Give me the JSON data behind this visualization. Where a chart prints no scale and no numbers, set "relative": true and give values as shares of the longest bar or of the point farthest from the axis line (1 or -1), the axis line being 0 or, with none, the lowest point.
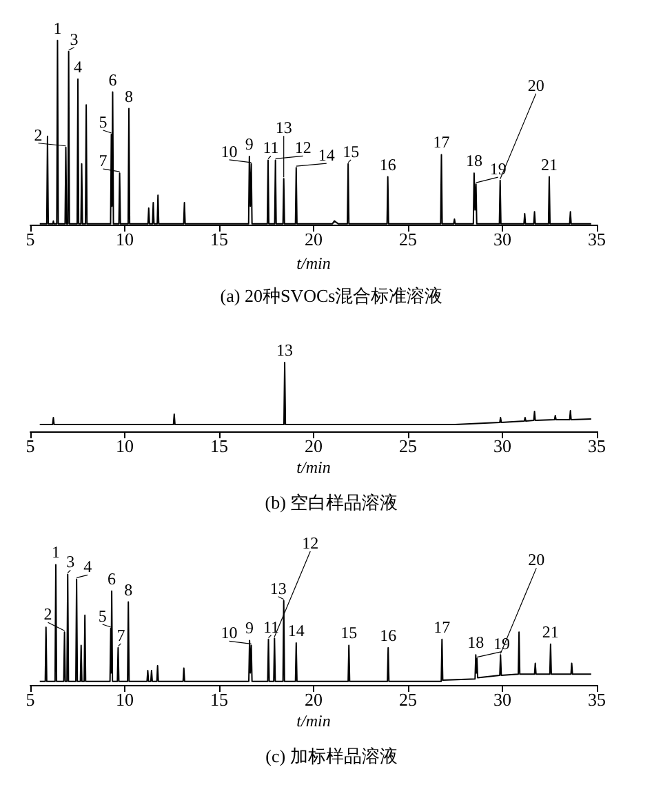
{
  "chart_data": [
    {
      "type": "line",
      "title": "(a) 20种SVOCs混合标准溶液",
      "xlabel": "t/min",
      "relative": true,
      "xlim": [
        5,
        35
      ],
      "xticks": [
        5,
        10,
        15,
        20,
        25,
        30,
        35
      ],
      "grid": false,
      "marker": "none",
      "line_style": "solid",
      "series": [
        {
          "color": "#000000",
          "x": [
            5.5,
            5.87,
            5.91,
            5.95,
            6.2,
            6.22,
            6.25,
            6.4,
            6.44,
            6.48,
            6.84,
            6.88,
            6.92,
            6.99,
            7.03,
            7.07,
            7.48,
            7.52,
            7.56,
            7.68,
            7.72,
            7.76,
            7.92,
            7.96,
            8.0,
            9.25,
            9.29,
            9.32,
            9.36,
            9.4,
            9.69,
            9.73,
            9.77,
            10.18,
            10.22,
            10.26,
            11.23,
            11.27,
            11.31,
            11.47,
            11.51,
            11.55,
            11.72,
            11.76,
            11.8,
            13.12,
            13.16,
            13.2,
            16.56,
            16.6,
            16.65,
            16.7,
            16.74,
            17.55,
            17.59,
            17.63,
            17.94,
            17.98,
            18.02,
            18.38,
            18.42,
            18.46,
            19.04,
            19.08,
            19.12,
            21.0,
            21.1,
            21.3,
            21.79,
            21.83,
            21.87,
            23.89,
            23.93,
            23.97,
            26.73,
            26.77,
            26.81,
            27.42,
            27.46,
            27.5,
            28.46,
            28.5,
            28.55,
            28.6,
            28.64,
            29.84,
            29.88,
            29.92,
            31.14,
            31.18,
            31.22,
            31.66,
            31.7,
            31.74,
            32.44,
            32.48,
            32.52,
            33.56,
            33.6,
            33.64,
            34.7
          ],
          "values": [
            0.005,
            0.005,
            0.48,
            0.005,
            0.005,
            0.02,
            0.005,
            0.005,
            1,
            0.005,
            0.005,
            0.42,
            0.005,
            0.005,
            0.94,
            0.005,
            0.005,
            0.79,
            0.005,
            0.005,
            0.33,
            0.005,
            0.005,
            0.65,
            0.005,
            0.005,
            0.49,
            0.1,
            0.72,
            0.005,
            0.005,
            0.28,
            0.005,
            0.005,
            0.63,
            0.005,
            0.005,
            0.09,
            0.005,
            0.005,
            0.12,
            0.005,
            0.005,
            0.16,
            0.005,
            0.005,
            0.12,
            0.005,
            0.005,
            0.37,
            0.1,
            0.33,
            0.005,
            0.005,
            0.35,
            0.005,
            0.005,
            0.35,
            0.005,
            0.005,
            0.25,
            0.005,
            0.005,
            0.31,
            0.005,
            0.005,
            0.02,
            0.005,
            0.005,
            0.33,
            0.005,
            0.005,
            0.26,
            0.005,
            0.005,
            0.38,
            0.005,
            0.005,
            0.03,
            0.005,
            0.005,
            0.28,
            0.08,
            0.22,
            0.005,
            0.005,
            0.24,
            0.005,
            0.005,
            0.06,
            0.005,
            0.005,
            0.07,
            0.005,
            0.005,
            0.26,
            0.005,
            0.005,
            0.07,
            0.005,
            0.005
          ]
        }
      ],
      "annotations": [
        {
          "text": "1",
          "x": 6.44,
          "y": 1
        },
        {
          "text": "2",
          "x": 6.88,
          "y": 0.42
        },
        {
          "text": "3",
          "x": 7.03,
          "y": 0.94
        },
        {
          "text": "4",
          "x": 7.52,
          "y": 0.79
        },
        {
          "text": "5",
          "x": 9.29,
          "y": 0.49
        },
        {
          "text": "6",
          "x": 9.36,
          "y": 0.72
        },
        {
          "text": "7",
          "x": 9.73,
          "y": 0.28
        },
        {
          "text": "8",
          "x": 10.22,
          "y": 0.63
        },
        {
          "text": "9",
          "x": 16.6,
          "y": 0.37
        },
        {
          "text": "10",
          "x": 16.7,
          "y": 0.33
        },
        {
          "text": "11",
          "x": 17.59,
          "y": 0.35
        },
        {
          "text": "12",
          "x": 17.98,
          "y": 0.35
        },
        {
          "text": "13",
          "x": 18.42,
          "y": 0.25
        },
        {
          "text": "14",
          "x": 19.08,
          "y": 0.31
        },
        {
          "text": "15",
          "x": 21.83,
          "y": 0.33
        },
        {
          "text": "16",
          "x": 23.93,
          "y": 0.26
        },
        {
          "text": "17",
          "x": 26.77,
          "y": 0.38
        },
        {
          "text": "18",
          "x": 28.5,
          "y": 0.28
        },
        {
          "text": "19",
          "x": 28.6,
          "y": 0.22
        },
        {
          "text": "20",
          "x": 29.88,
          "y": 0.24
        },
        {
          "text": "21",
          "x": 32.48,
          "y": 0.26
        }
      ]
    },
    {
      "type": "line",
      "title": "(b) 空白样品溶液",
      "xlabel": "t/min",
      "relative": true,
      "xlim": [
        5,
        35
      ],
      "xticks": [
        5,
        10,
        15,
        20,
        25,
        30,
        35
      ],
      "grid": false,
      "marker": "none",
      "line_style": "solid",
      "series": [
        {
          "color": "#000000",
          "x": [
            5.5,
            6.18,
            6.22,
            6.26,
            12.58,
            12.62,
            12.66,
            18.43,
            18.47,
            18.51,
            27.5,
            29.86,
            29.9,
            29.94,
            31.16,
            31.2,
            31.24,
            31.66,
            31.7,
            31.74,
            32.76,
            32.8,
            32.84,
            33.56,
            33.6,
            33.64,
            34.7
          ],
          "values": [
            0.1,
            0.1,
            0.2,
            0.1,
            0.1,
            0.25,
            0.1,
            0.1,
            1,
            0.1,
            0.1,
            0.13,
            0.2,
            0.13,
            0.15,
            0.2,
            0.15,
            0.16,
            0.29,
            0.16,
            0.17,
            0.23,
            0.17,
            0.17,
            0.3,
            0.17,
            0.18
          ]
        }
      ],
      "annotations": [
        {
          "text": "13",
          "x": 18.47,
          "y": 1
        }
      ]
    },
    {
      "type": "line",
      "title": "(c) 加标样品溶液",
      "xlabel": "t/min",
      "relative": true,
      "xlim": [
        5,
        35
      ],
      "xticks": [
        5,
        10,
        15,
        20,
        25,
        30,
        35
      ],
      "grid": false,
      "marker": "none",
      "line_style": "solid",
      "series": [
        {
          "color": "#000000",
          "x": [
            5.5,
            5.79,
            5.83,
            5.87,
            6.31,
            6.35,
            6.39,
            6.77,
            6.81,
            6.85,
            6.94,
            6.98,
            7.02,
            7.41,
            7.45,
            7.49,
            7.65,
            7.69,
            7.73,
            7.85,
            7.89,
            7.93,
            9.22,
            9.26,
            9.28,
            9.31,
            9.35,
            9.61,
            9.65,
            9.69,
            10.15,
            10.19,
            10.23,
            11.18,
            11.22,
            11.26,
            11.38,
            11.42,
            11.46,
            11.7,
            11.74,
            11.78,
            13.09,
            13.13,
            13.17,
            16.57,
            16.61,
            16.65,
            16.7,
            16.74,
            17.57,
            17.61,
            17.65,
            17.89,
            17.93,
            17.97,
            18.38,
            18.42,
            18.46,
            19.04,
            19.08,
            19.12,
            21.83,
            21.87,
            21.91,
            23.91,
            23.95,
            23.99,
            26.76,
            26.8,
            26.84,
            28.55,
            28.59,
            28.62,
            28.65,
            28.69,
            29.86,
            29.9,
            29.94,
            30.84,
            30.88,
            30.92,
            31.7,
            31.74,
            31.78,
            32.51,
            32.55,
            32.59,
            33.63,
            33.67,
            33.71,
            34.7
          ],
          "values": [
            0.03,
            0.03,
            0.48,
            0.03,
            0.03,
            1,
            0.03,
            0.03,
            0.44,
            0.03,
            0.03,
            0.92,
            0.03,
            0.03,
            0.88,
            0.03,
            0.03,
            0.33,
            0.03,
            0.03,
            0.58,
            0.03,
            0.03,
            0.47,
            0.1,
            0.78,
            0.03,
            0.03,
            0.31,
            0.03,
            0.03,
            0.69,
            0.03,
            0.03,
            0.12,
            0.03,
            0.03,
            0.12,
            0.03,
            0.03,
            0.16,
            0.03,
            0.03,
            0.14,
            0.03,
            0.03,
            0.37,
            0.1,
            0.33,
            0.03,
            0.03,
            0.38,
            0.03,
            0.03,
            0.39,
            0.03,
            0.03,
            0.7,
            0.03,
            0.03,
            0.35,
            0.03,
            0.03,
            0.33,
            0.03,
            0.03,
            0.31,
            0.03,
            0.03,
            0.38,
            0.04,
            0.05,
            0.25,
            0.1,
            0.22,
            0.06,
            0.08,
            0.25,
            0.08,
            0.09,
            0.44,
            0.09,
            0.09,
            0.18,
            0.09,
            0.09,
            0.34,
            0.09,
            0.09,
            0.18,
            0.09,
            0.09
          ]
        }
      ],
      "annotations": [
        {
          "text": "1",
          "x": 6.35,
          "y": 1
        },
        {
          "text": "2",
          "x": 6.81,
          "y": 0.44
        },
        {
          "text": "3",
          "x": 6.98,
          "y": 0.92
        },
        {
          "text": "4",
          "x": 7.45,
          "y": 0.88
        },
        {
          "text": "5",
          "x": 9.26,
          "y": 0.47
        },
        {
          "text": "6",
          "x": 9.31,
          "y": 0.78
        },
        {
          "text": "7",
          "x": 9.65,
          "y": 0.31
        },
        {
          "text": "8",
          "x": 10.19,
          "y": 0.69
        },
        {
          "text": "9",
          "x": 16.61,
          "y": 0.37
        },
        {
          "text": "10",
          "x": 16.7,
          "y": 0.33
        },
        {
          "text": "11",
          "x": 17.61,
          "y": 0.38
        },
        {
          "text": "12",
          "x": 17.93,
          "y": 0.39
        },
        {
          "text": "13",
          "x": 18.42,
          "y": 0.7
        },
        {
          "text": "14",
          "x": 19.08,
          "y": 0.35
        },
        {
          "text": "15",
          "x": 21.87,
          "y": 0.33
        },
        {
          "text": "16",
          "x": 23.95,
          "y": 0.31
        },
        {
          "text": "17",
          "x": 26.8,
          "y": 0.38
        },
        {
          "text": "18",
          "x": 28.59,
          "y": 0.25
        },
        {
          "text": "19",
          "x": 28.65,
          "y": 0.22
        },
        {
          "text": "20",
          "x": 29.9,
          "y": 0.25
        },
        {
          "text": "21",
          "x": 32.55,
          "y": 0.34
        }
      ]
    }
  ]
}
